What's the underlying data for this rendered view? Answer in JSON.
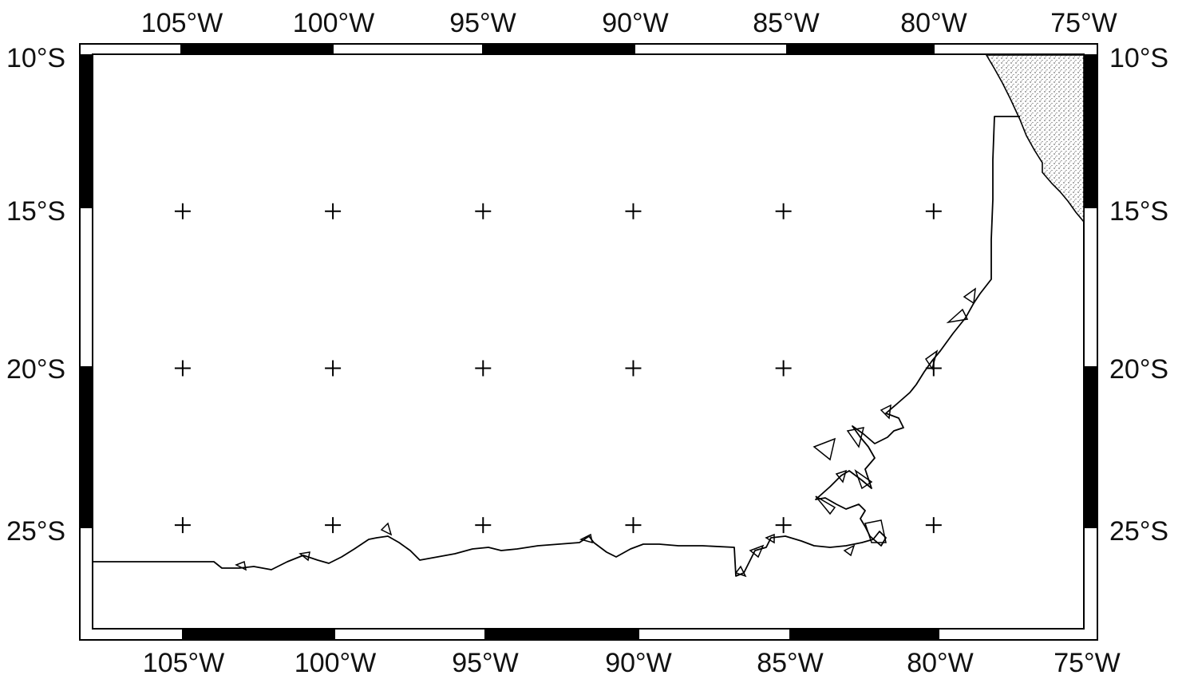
{
  "map": {
    "top_lon_labels": [
      "105°W",
      "100°W",
      "95°W",
      "90°W",
      "85°W",
      "80°W",
      "75°W"
    ],
    "bottom_lon_labels": [
      "105°W",
      "100°W",
      "95°W",
      "90°W",
      "85°W",
      "80°W",
      "75°W"
    ],
    "left_lat_labels": [
      "10°S",
      "15°S",
      "20°S",
      "25°S"
    ],
    "right_lat_labels": [
      "10°S",
      "15°S",
      "20°S",
      "25°S"
    ],
    "extent": {
      "lon_west": -108,
      "lon_east": -75,
      "lat_north": -10,
      "lat_south": -28.3
    },
    "graticule_lons": [
      -105,
      -100,
      -95,
      -90,
      -85,
      -80
    ],
    "graticule_lats": [
      -15,
      -20,
      -25
    ],
    "land_fill": "stippled",
    "frame_style": "alternating black-white border"
  }
}
